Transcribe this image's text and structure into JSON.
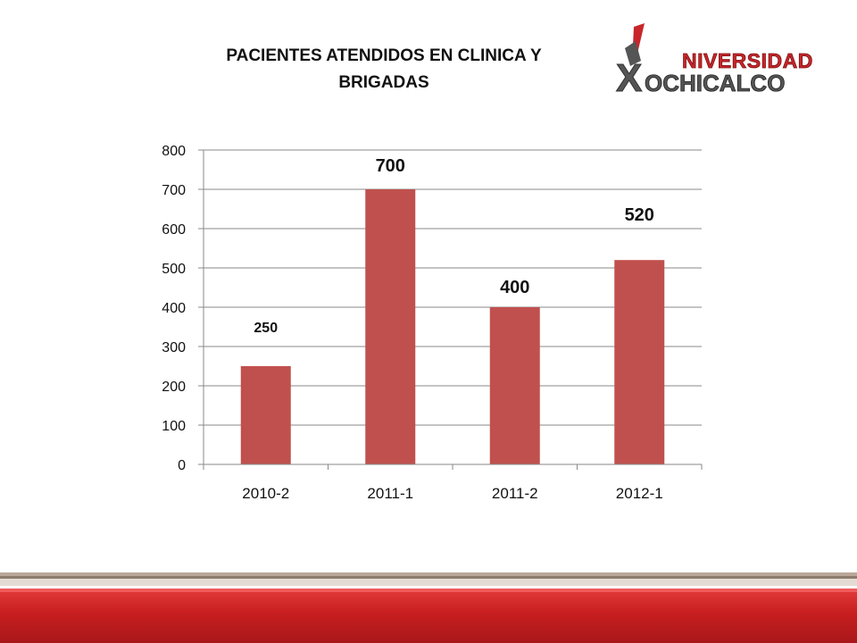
{
  "title_lines": [
    "PACIENTES ATENDIDOS EN CLINICA Y",
    "BRIGADAS"
  ],
  "logo": {
    "line1": "NIVERSIDAD",
    "line2": "OCHICALCO",
    "letter": "X",
    "accent_color": "#c8262a",
    "dark_color": "#555555"
  },
  "chart_data": {
    "type": "bar",
    "title": "PACIENTES ATENDIDOS EN CLINICA Y BRIGADAS",
    "categories": [
      "2010-2",
      "2011-1",
      "2011-2",
      "2012-1"
    ],
    "values": [
      250,
      700,
      400,
      520
    ],
    "data_labels": [
      "250",
      "700",
      "400",
      "520"
    ],
    "ylim": [
      0,
      800
    ],
    "yticks": [
      0,
      100,
      200,
      300,
      400,
      500,
      600,
      700,
      800
    ],
    "grid": true,
    "bar_color": "#c0504d",
    "legend": "none"
  },
  "colors": {
    "band_red": "#c81e20",
    "band_beige": "#e4dcd4"
  }
}
